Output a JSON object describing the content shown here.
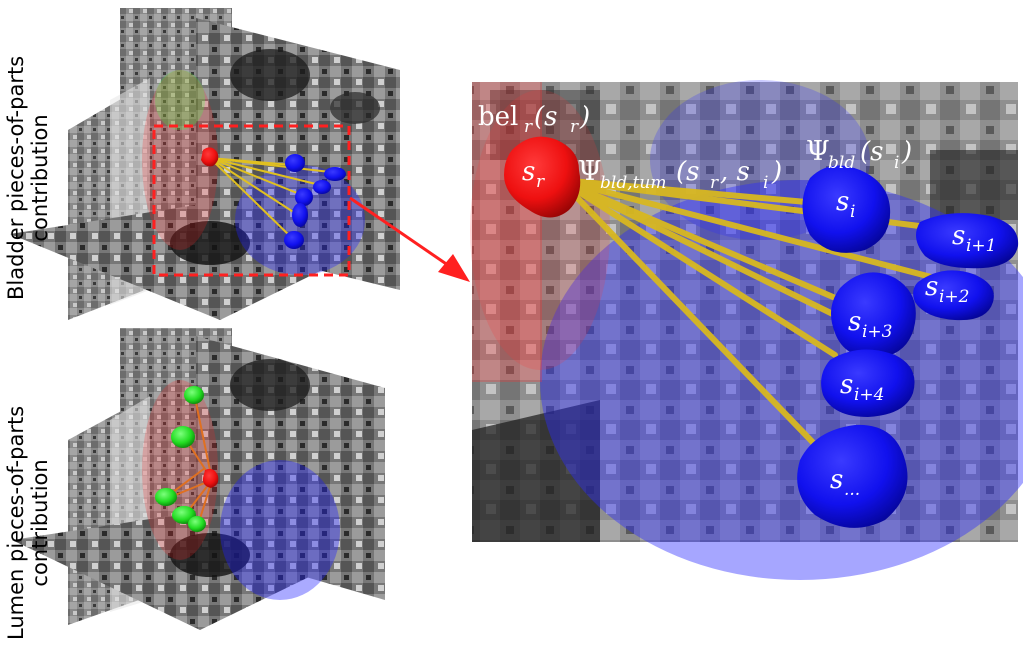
{
  "panels": {
    "top": {
      "label_line1": "Bladder pieces-of-parts",
      "label_line2": "contribution"
    },
    "bottom": {
      "label_line1": "Lumen pieces-of-parts",
      "label_line2": "contribution"
    }
  },
  "zoom": {
    "belief_label": {
      "fn": "bel",
      "sub": "r",
      "arg": "(s",
      "arg_sub": "r",
      "close": ")"
    },
    "pairwise_label": {
      "psi": "Ψ",
      "sub": "bld,tum",
      "args": "(s",
      "a1": "r",
      "mid": ", s",
      "a2": "i",
      "close": ")"
    },
    "unary_label": {
      "psi": "Ψ",
      "sub": "bld",
      "args": "(s",
      "a1": "i",
      "close": ")"
    },
    "nodes": [
      {
        "id": "s_r",
        "base": "s",
        "sub": "r",
        "color": "red"
      },
      {
        "id": "s_i",
        "base": "s",
        "sub": "i",
        "color": "blue"
      },
      {
        "id": "s_i1",
        "base": "s",
        "sub": "i+1",
        "color": "blue"
      },
      {
        "id": "s_i2",
        "base": "s",
        "sub": "i+2",
        "color": "blue"
      },
      {
        "id": "s_i3",
        "base": "s",
        "sub": "i+3",
        "color": "blue"
      },
      {
        "id": "s_i4",
        "base": "s",
        "sub": "i+4",
        "color": "blue"
      },
      {
        "id": "s_more",
        "base": "s",
        "sub": "...",
        "color": "blue"
      }
    ]
  },
  "colors": {
    "bladder": "#1a1aff",
    "tumor": "#ff1010",
    "lumen": "#22dd22",
    "edge": "#e0c020",
    "arrow": "#ff2020"
  }
}
